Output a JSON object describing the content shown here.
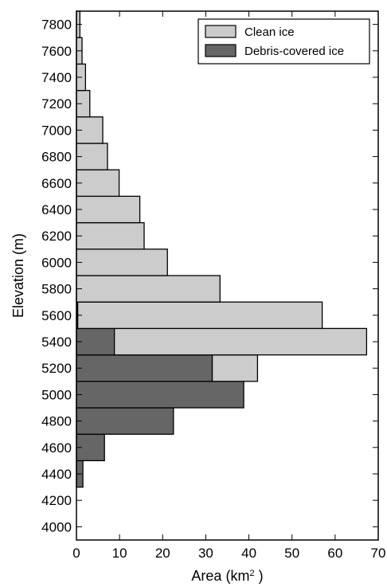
{
  "chart_data": {
    "type": "bar",
    "orientation": "horizontal",
    "stacked": true,
    "xlabel": "Area (km",
    "xlabel_superscript": "2",
    "xlabel_suffix": " )",
    "ylabel": "Elevation (m)",
    "xlim": [
      0,
      70
    ],
    "ylim": [
      3900,
      7900
    ],
    "bin_width": 200,
    "xticks": [
      0,
      10,
      20,
      30,
      40,
      50,
      60,
      70
    ],
    "yticks": [
      4000,
      4200,
      4400,
      4600,
      4800,
      5000,
      5200,
      5400,
      5600,
      5800,
      6000,
      6200,
      6400,
      6600,
      6800,
      7000,
      7200,
      7400,
      7600,
      7800
    ],
    "legend_position": "top-right",
    "grid": false,
    "bin_centers": [
      4400,
      4600,
      4800,
      5000,
      5200,
      5400,
      5600,
      5800,
      6000,
      6200,
      6400,
      6600,
      6800,
      7000,
      7200,
      7400,
      7600,
      7800
    ],
    "series": [
      {
        "name": "Debris-covered ice",
        "color": "#666666",
        "values": [
          1.5,
          6.5,
          22.5,
          38.8,
          31.5,
          8.8,
          0.3,
          0,
          0,
          0,
          0,
          0,
          0,
          0,
          0,
          0,
          0,
          0
        ]
      },
      {
        "name": "Clean ice",
        "color": "#cccccc",
        "values": [
          0,
          0,
          0,
          0,
          10.5,
          58.5,
          56.7,
          33.3,
          21.1,
          15.7,
          14.7,
          9.9,
          7.2,
          6.1,
          3.1,
          2.1,
          1.3,
          0.8
        ]
      }
    ],
    "legend": [
      "Clean ice",
      "Debris-covered ice"
    ]
  }
}
